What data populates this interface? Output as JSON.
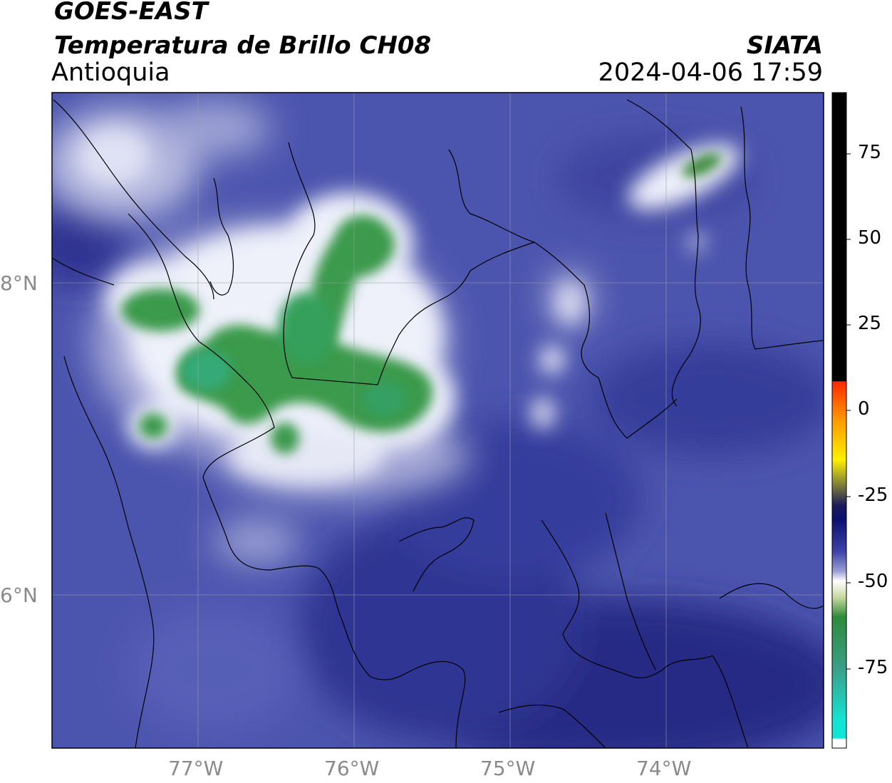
{
  "header": {
    "satellite": "GOES-EAST",
    "product": "Temperatura de Brillo CH08",
    "region": "Antioquia",
    "agency": "SIATA",
    "datetime": "2024-04-06 17:59"
  },
  "map": {
    "lon_labels": [
      "77°W",
      "76°W",
      "75°W",
      "74°W"
    ],
    "lat_labels": [
      "8°N",
      "6°N"
    ]
  },
  "colorbar": {
    "ticks": [
      "75",
      "50",
      "25",
      "0",
      "-25",
      "-50",
      "-75"
    ],
    "colors": {
      "black": "#000000",
      "red": "#ff2a00",
      "orange": "#ff9a00",
      "yellow": "#fff000",
      "navy": "#0a0f6e",
      "blue": "#3c42a8",
      "white": "#ffffff",
      "green": "#2e8b3a",
      "cyan": "#11e6d6"
    }
  },
  "colors": {
    "background_field": "#4c55ae",
    "deep_blue": "#2a2f88",
    "cloud_white": "#eef0fa",
    "cloud_green": "#3a9a4c",
    "border_line": "#000000",
    "grid_line": "#9aa0a8"
  }
}
